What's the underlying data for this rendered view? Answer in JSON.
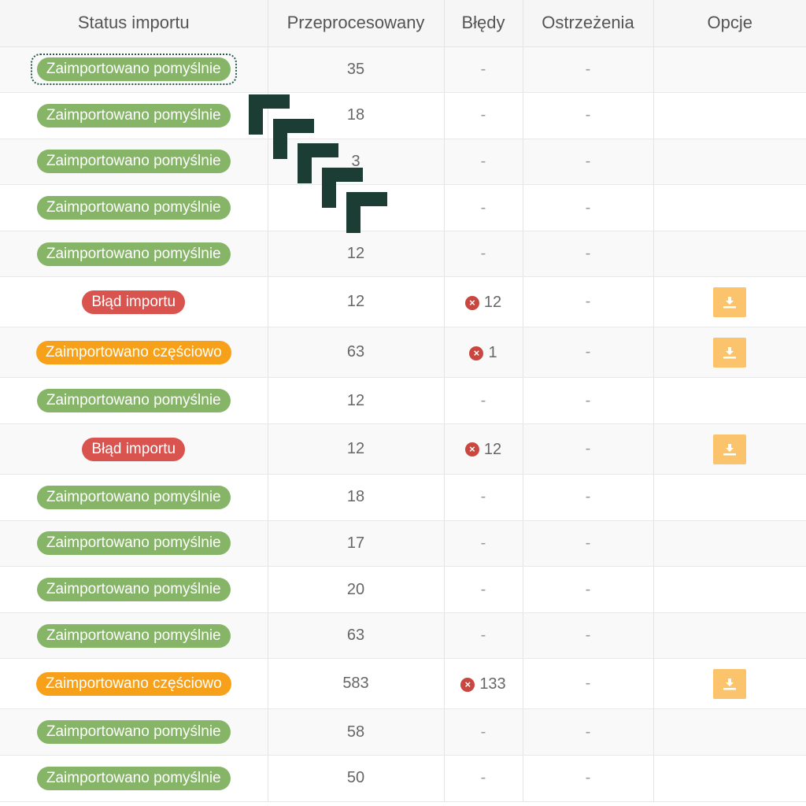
{
  "table": {
    "headers": [
      "Status importu",
      "Przeprocesowany",
      "Błędy",
      "Ostrzeżenia",
      "Opcje"
    ],
    "rows": [
      {
        "status": "Zaimportowano pomyślnie",
        "type": "success",
        "processed": "35",
        "errors": "-",
        "warnings": "-",
        "download": false,
        "focused": true
      },
      {
        "status": "Zaimportowano pomyślnie",
        "type": "success",
        "processed": "18",
        "errors": "-",
        "warnings": "-",
        "download": false
      },
      {
        "status": "Zaimportowano pomyślnie",
        "type": "success",
        "processed": "3",
        "errors": "-",
        "warnings": "-",
        "download": false
      },
      {
        "status": "Zaimportowano pomyślnie",
        "type": "success",
        "processed": "",
        "errors": "-",
        "warnings": "-",
        "download": false
      },
      {
        "status": "Zaimportowano pomyślnie",
        "type": "success",
        "processed": "12",
        "errors": "-",
        "warnings": "-",
        "download": false
      },
      {
        "status": "Błąd importu",
        "type": "error",
        "processed": "12",
        "errors": "12",
        "warnings": "-",
        "download": true
      },
      {
        "status": "Zaimportowano częściowo",
        "type": "partial",
        "processed": "63",
        "errors": "1",
        "warnings": "-",
        "download": true
      },
      {
        "status": "Zaimportowano pomyślnie",
        "type": "success",
        "processed": "12",
        "errors": "-",
        "warnings": "-",
        "download": false
      },
      {
        "status": "Błąd importu",
        "type": "error",
        "processed": "12",
        "errors": "12",
        "warnings": "-",
        "download": true
      },
      {
        "status": "Zaimportowano pomyślnie",
        "type": "success",
        "processed": "18",
        "errors": "-",
        "warnings": "-",
        "download": false
      },
      {
        "status": "Zaimportowano pomyślnie",
        "type": "success",
        "processed": "17",
        "errors": "-",
        "warnings": "-",
        "download": false
      },
      {
        "status": "Zaimportowano pomyślnie",
        "type": "success",
        "processed": "20",
        "errors": "-",
        "warnings": "-",
        "download": false
      },
      {
        "status": "Zaimportowano pomyślnie",
        "type": "success",
        "processed": "63",
        "errors": "-",
        "warnings": "-",
        "download": false
      },
      {
        "status": "Zaimportowano częściowo",
        "type": "partial",
        "processed": "583",
        "errors": "133",
        "warnings": "-",
        "download": true
      },
      {
        "status": "Zaimportowano pomyślnie",
        "type": "success",
        "processed": "58",
        "errors": "-",
        "warnings": "-",
        "download": false
      },
      {
        "status": "Zaimportowano pomyślnie",
        "type": "success",
        "processed": "50",
        "errors": "-",
        "warnings": "-",
        "download": false
      }
    ]
  },
  "icons": {
    "error": "x-circle-icon",
    "download": "download-icon"
  },
  "colors": {
    "success": "#86b567",
    "error": "#d9534f",
    "partial": "#f7a11a",
    "download_button": "#fbc46c",
    "error_icon": "#c9473f"
  }
}
